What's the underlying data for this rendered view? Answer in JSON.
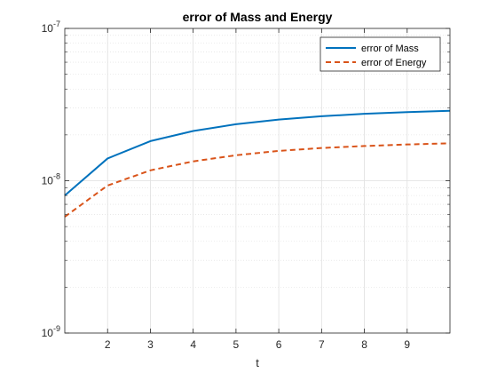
{
  "chart_data": {
    "type": "line",
    "title": "error of Mass and Energy",
    "xlabel": "t",
    "ylabel": "",
    "xlim": [
      1,
      10
    ],
    "ylim": [
      1e-09,
      1e-07
    ],
    "yscale": "log",
    "grid": true,
    "minor_grid": true,
    "legend_position": "top-right",
    "x_ticks": [
      2,
      3,
      4,
      5,
      6,
      7,
      8,
      9
    ],
    "x_tick_labels": [
      "2",
      "3",
      "4",
      "5",
      "6",
      "7",
      "8",
      "9"
    ],
    "y_ticks": [
      1e-09,
      1e-08,
      1e-07
    ],
    "y_tick_labels": [
      {
        "base": "10",
        "exp": "-9"
      },
      {
        "base": "10",
        "exp": "-8"
      },
      {
        "base": "10",
        "exp": "-7"
      }
    ],
    "x": [
      1,
      2,
      3,
      4,
      5,
      6,
      7,
      8,
      9,
      10
    ],
    "series": [
      {
        "name": "error of Mass",
        "color": "#0072BD",
        "style": "solid",
        "values": [
          8e-09,
          1.4e-08,
          1.82e-08,
          2.12e-08,
          2.35e-08,
          2.52e-08,
          2.65e-08,
          2.75e-08,
          2.82e-08,
          2.88e-08
        ]
      },
      {
        "name": "error of Energy",
        "color": "#D95319",
        "style": "dashed",
        "values": [
          5.8e-09,
          9.3e-09,
          1.17e-08,
          1.34e-08,
          1.47e-08,
          1.57e-08,
          1.64e-08,
          1.69e-08,
          1.73e-08,
          1.76e-08
        ]
      }
    ]
  }
}
